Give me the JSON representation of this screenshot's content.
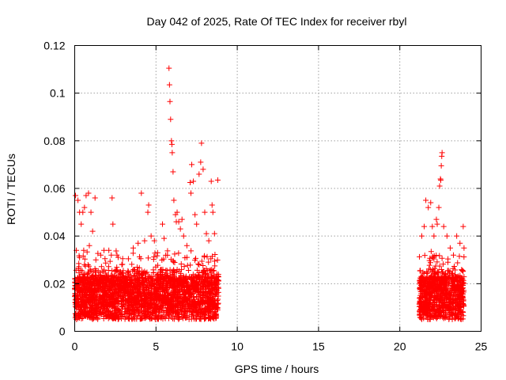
{
  "chart_data": {
    "type": "scatter",
    "title": "Day 042 of 2025, Rate Of TEC Index for receiver rbyl",
    "xlabel": "GPS time / hours",
    "ylabel": "ROTI / TECUs",
    "xlim": [
      0,
      25
    ],
    "ylim": [
      0,
      0.12
    ],
    "x_ticks": [
      0,
      5,
      10,
      15,
      20,
      25
    ],
    "x_tick_labels": [
      "0",
      "5",
      "10",
      "15",
      "20",
      "25"
    ],
    "y_ticks": [
      0,
      0.02,
      0.04,
      0.06,
      0.08,
      0.1,
      0.12
    ],
    "y_tick_labels": [
      "0",
      "0.02",
      "0.04",
      "0.06",
      "0.08",
      "0.1",
      "0.12"
    ],
    "grid": true,
    "marker": "+",
    "color": "#ff0000",
    "series": [
      {
        "name": "ROTI",
        "points": [
          [
            0.05,
            0.057
          ],
          [
            0.2,
            0.055
          ],
          [
            0.3,
            0.05
          ],
          [
            0.4,
            0.045
          ],
          [
            0.5,
            0.05
          ],
          [
            0.6,
            0.052
          ],
          [
            0.7,
            0.057
          ],
          [
            0.85,
            0.058
          ],
          [
            1.0,
            0.05
          ],
          [
            1.25,
            0.056
          ],
          [
            0.1,
            0.034
          ],
          [
            0.3,
            0.031
          ],
          [
            0.6,
            0.028
          ],
          [
            0.9,
            0.036
          ],
          [
            1.1,
            0.042
          ],
          [
            1.3,
            0.03
          ],
          [
            1.6,
            0.032
          ],
          [
            1.8,
            0.034
          ],
          [
            2.1,
            0.034
          ],
          [
            2.3,
            0.056
          ],
          [
            2.35,
            0.045
          ],
          [
            2.6,
            0.032
          ],
          [
            2.9,
            0.028
          ],
          [
            3.3,
            0.025
          ],
          [
            3.6,
            0.035
          ],
          [
            3.9,
            0.037
          ],
          [
            4.1,
            0.058
          ],
          [
            4.3,
            0.038
          ],
          [
            4.5,
            0.05
          ],
          [
            4.55,
            0.053
          ],
          [
            4.7,
            0.04
          ],
          [
            4.9,
            0.038
          ],
          [
            5.1,
            0.033
          ],
          [
            5.4,
            0.045
          ],
          [
            5.5,
            0.039
          ],
          [
            5.8,
            0.1105
          ],
          [
            5.83,
            0.1035
          ],
          [
            5.86,
            0.0965
          ],
          [
            5.9,
            0.089
          ],
          [
            5.95,
            0.08
          ],
          [
            5.98,
            0.0785
          ],
          [
            6.0,
            0.075
          ],
          [
            6.05,
            0.067
          ],
          [
            6.1,
            0.055
          ],
          [
            6.2,
            0.049
          ],
          [
            6.25,
            0.046
          ],
          [
            6.3,
            0.05
          ],
          [
            6.4,
            0.046
          ],
          [
            6.5,
            0.043
          ],
          [
            6.6,
            0.047
          ],
          [
            6.7,
            0.04
          ],
          [
            6.9,
            0.036
          ],
          [
            7.1,
            0.0625
          ],
          [
            7.15,
            0.058
          ],
          [
            7.2,
            0.07
          ],
          [
            7.3,
            0.063
          ],
          [
            7.4,
            0.049
          ],
          [
            7.5,
            0.045
          ],
          [
            7.65,
            0.066
          ],
          [
            7.75,
            0.071
          ],
          [
            7.8,
            0.079
          ],
          [
            7.9,
            0.068
          ],
          [
            8.0,
            0.05
          ],
          [
            8.1,
            0.041
          ],
          [
            8.25,
            0.038
          ],
          [
            8.4,
            0.063
          ],
          [
            8.45,
            0.053
          ],
          [
            8.5,
            0.05
          ],
          [
            8.6,
            0.041
          ],
          [
            8.8,
            0.0635
          ],
          [
            21.35,
            0.04
          ],
          [
            21.5,
            0.044
          ],
          [
            21.6,
            0.055
          ],
          [
            21.75,
            0.052
          ],
          [
            21.9,
            0.054
          ],
          [
            22.0,
            0.044
          ],
          [
            22.1,
            0.04
          ],
          [
            22.25,
            0.047
          ],
          [
            22.3,
            0.045
          ],
          [
            22.4,
            0.052
          ],
          [
            22.45,
            0.061
          ],
          [
            22.5,
            0.064
          ],
          [
            22.52,
            0.0635
          ],
          [
            22.55,
            0.0695
          ],
          [
            22.58,
            0.0735
          ],
          [
            22.6,
            0.075
          ],
          [
            22.7,
            0.044
          ],
          [
            22.9,
            0.04
          ],
          [
            23.1,
            0.035
          ],
          [
            23.3,
            0.032
          ],
          [
            23.5,
            0.04
          ],
          [
            23.7,
            0.037
          ],
          [
            23.9,
            0.044
          ],
          [
            23.95,
            0.035
          ]
        ]
      }
    ]
  }
}
